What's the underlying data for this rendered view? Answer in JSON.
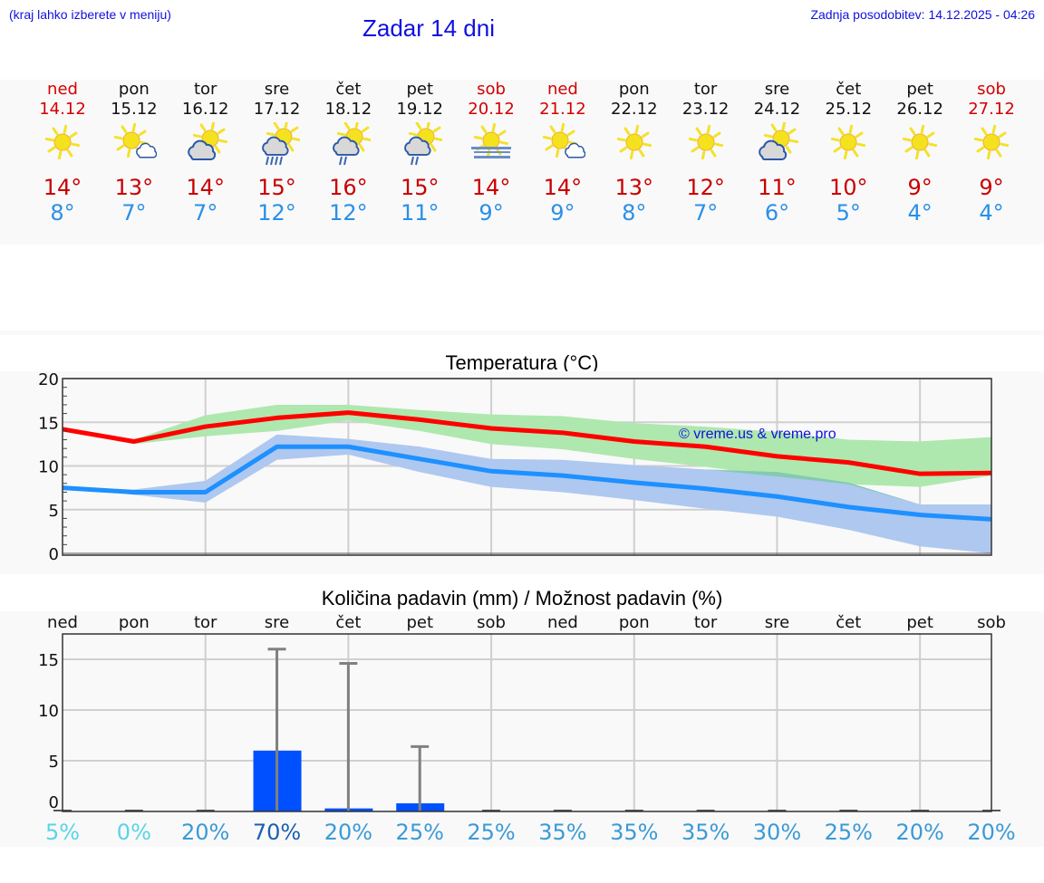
{
  "header": {
    "menu_hint": "(kraj lahko izberete v meniju)",
    "title": "Zadar 14 dni",
    "last_update": "Zadnja posodobitev: 14.12.2025 - 04:26"
  },
  "days": [
    {
      "name": "ned",
      "date": "14.12",
      "weekend": true,
      "icon": "sunny-icon",
      "tmax": "14°",
      "tmin": "8°"
    },
    {
      "name": "pon",
      "date": "15.12",
      "weekend": false,
      "icon": "sun-small-cloud-icon",
      "tmax": "13°",
      "tmin": "7°"
    },
    {
      "name": "tor",
      "date": "16.12",
      "weekend": false,
      "icon": "partly-cloudy-icon",
      "tmax": "14°",
      "tmin": "7°"
    },
    {
      "name": "sre",
      "date": "17.12",
      "weekend": false,
      "icon": "sun-cloud-rain-icon",
      "tmax": "15°",
      "tmin": "12°"
    },
    {
      "name": "čet",
      "date": "18.12",
      "weekend": false,
      "icon": "sun-cloud-light-rain-icon",
      "tmax": "16°",
      "tmin": "12°"
    },
    {
      "name": "pet",
      "date": "19.12",
      "weekend": false,
      "icon": "sun-cloud-light-rain-icon",
      "tmax": "15°",
      "tmin": "11°"
    },
    {
      "name": "sob",
      "date": "20.12",
      "weekend": true,
      "icon": "sun-fog-icon",
      "tmax": "14°",
      "tmin": "9°"
    },
    {
      "name": "ned",
      "date": "21.12",
      "weekend": true,
      "icon": "sun-small-cloud-icon",
      "tmax": "14°",
      "tmin": "9°"
    },
    {
      "name": "pon",
      "date": "22.12",
      "weekend": false,
      "icon": "sunny-icon",
      "tmax": "13°",
      "tmin": "8°"
    },
    {
      "name": "tor",
      "date": "23.12",
      "weekend": false,
      "icon": "sunny-icon",
      "tmax": "12°",
      "tmin": "7°"
    },
    {
      "name": "sre",
      "date": "24.12",
      "weekend": false,
      "icon": "partly-cloudy-icon",
      "tmax": "11°",
      "tmin": "6°"
    },
    {
      "name": "čet",
      "date": "25.12",
      "weekend": false,
      "icon": "sunny-icon",
      "tmax": "10°",
      "tmin": "5°"
    },
    {
      "name": "pet",
      "date": "26.12",
      "weekend": false,
      "icon": "sunny-icon",
      "tmax": "9°",
      "tmin": "4°"
    },
    {
      "name": "sob",
      "date": "27.12",
      "weekend": true,
      "icon": "sunny-icon",
      "tmax": "9°",
      "tmin": "4°"
    }
  ],
  "colors": {
    "max_line": "#ff0000",
    "min_line": "#1e90ff",
    "max_band": "#aee8ae",
    "min_band": "#aec8f0",
    "overlap_band": "#7fcaa8",
    "precip_bar": "#0050ff",
    "error_bar": "#808080",
    "weekend_text": "#d40000",
    "tmax_text": "#c80000",
    "tmin_text": "#2a8fe8",
    "header_text": "#1010e0"
  },
  "temp_chart": {
    "title": "Temperatura (°C)",
    "watermark": "© vreme.us & vreme.pro",
    "yticks": [
      "0",
      "5",
      "10",
      "15",
      "20"
    ]
  },
  "precip_chart": {
    "title": "Količina padavin (mm) / Možnost padavin (%)",
    "day_labels": [
      "ned",
      "pon",
      "tor",
      "sre",
      "čet",
      "pet",
      "sob",
      "ned",
      "pon",
      "tor",
      "sre",
      "čet",
      "pet",
      "sob"
    ],
    "yticks": [
      "0",
      "5",
      "10",
      "15"
    ],
    "probabilities": [
      "5%",
      "0%",
      "20%",
      "70%",
      "20%",
      "25%",
      "25%",
      "35%",
      "35%",
      "35%",
      "30%",
      "25%",
      "20%",
      "20%"
    ]
  },
  "chart_data": [
    {
      "type": "line",
      "title": "Temperatura (°C)",
      "xlabel": "",
      "ylabel": "°C",
      "ylim": [
        0,
        20
      ],
      "grid": true,
      "categories": [
        "14.12",
        "15.12",
        "16.12",
        "17.12",
        "18.12",
        "19.12",
        "20.12",
        "21.12",
        "22.12",
        "23.12",
        "24.12",
        "25.12",
        "26.12",
        "27.12"
      ],
      "series": [
        {
          "name": "Max",
          "values": [
            14.2,
            12.8,
            14.5,
            15.5,
            16.1,
            15.3,
            14.3,
            13.8,
            12.8,
            12.2,
            11.1,
            10.4,
            9.1,
            9.2
          ]
        },
        {
          "name": "Max range low",
          "values": [
            14.2,
            12.5,
            13.4,
            14.0,
            15.2,
            14.0,
            12.5,
            11.9,
            10.8,
            9.9,
            8.8,
            7.9,
            7.6,
            8.9
          ]
        },
        {
          "name": "Max range high",
          "values": [
            14.2,
            13.0,
            15.8,
            17.0,
            17.0,
            16.4,
            15.9,
            15.7,
            14.9,
            14.5,
            13.9,
            13.0,
            12.8,
            13.3
          ]
        },
        {
          "name": "Min",
          "values": [
            7.5,
            7.0,
            7.0,
            12.2,
            12.2,
            10.8,
            9.4,
            8.9,
            8.1,
            7.4,
            6.5,
            5.3,
            4.4,
            3.9
          ]
        },
        {
          "name": "Min range low",
          "values": [
            7.5,
            6.7,
            5.8,
            10.7,
            11.3,
            9.3,
            7.6,
            7.0,
            6.1,
            5.1,
            4.2,
            2.7,
            0.8,
            0.0
          ]
        },
        {
          "name": "Min range high",
          "values": [
            7.5,
            7.3,
            8.3,
            13.6,
            13.1,
            12.2,
            10.8,
            10.7,
            10.1,
            9.6,
            9.3,
            8.1,
            5.6,
            5.6
          ]
        }
      ]
    },
    {
      "type": "bar",
      "title": "Količina padavin (mm) / Možnost padavin (%)",
      "xlabel": "",
      "ylabel": "mm",
      "ylim": [
        0,
        17.5
      ],
      "grid": true,
      "categories": [
        "ned",
        "pon",
        "tor",
        "sre",
        "čet",
        "pet",
        "sob",
        "ned",
        "pon",
        "tor",
        "sre",
        "čet",
        "pet",
        "sob"
      ],
      "series": [
        {
          "name": "Količina padavin (mm)",
          "values": [
            0,
            0,
            0,
            6.0,
            0.3,
            0.8,
            0,
            0,
            0,
            0,
            0,
            0,
            0,
            0
          ]
        },
        {
          "name": "Max padavin (mm)",
          "values": [
            0,
            0,
            0,
            16.0,
            14.6,
            6.4,
            0,
            0,
            0,
            0,
            0,
            0,
            0,
            0
          ]
        },
        {
          "name": "Možnost padavin (%)",
          "values": [
            5,
            0,
            20,
            70,
            20,
            25,
            25,
            35,
            35,
            35,
            30,
            25,
            20,
            20
          ]
        }
      ]
    }
  ]
}
